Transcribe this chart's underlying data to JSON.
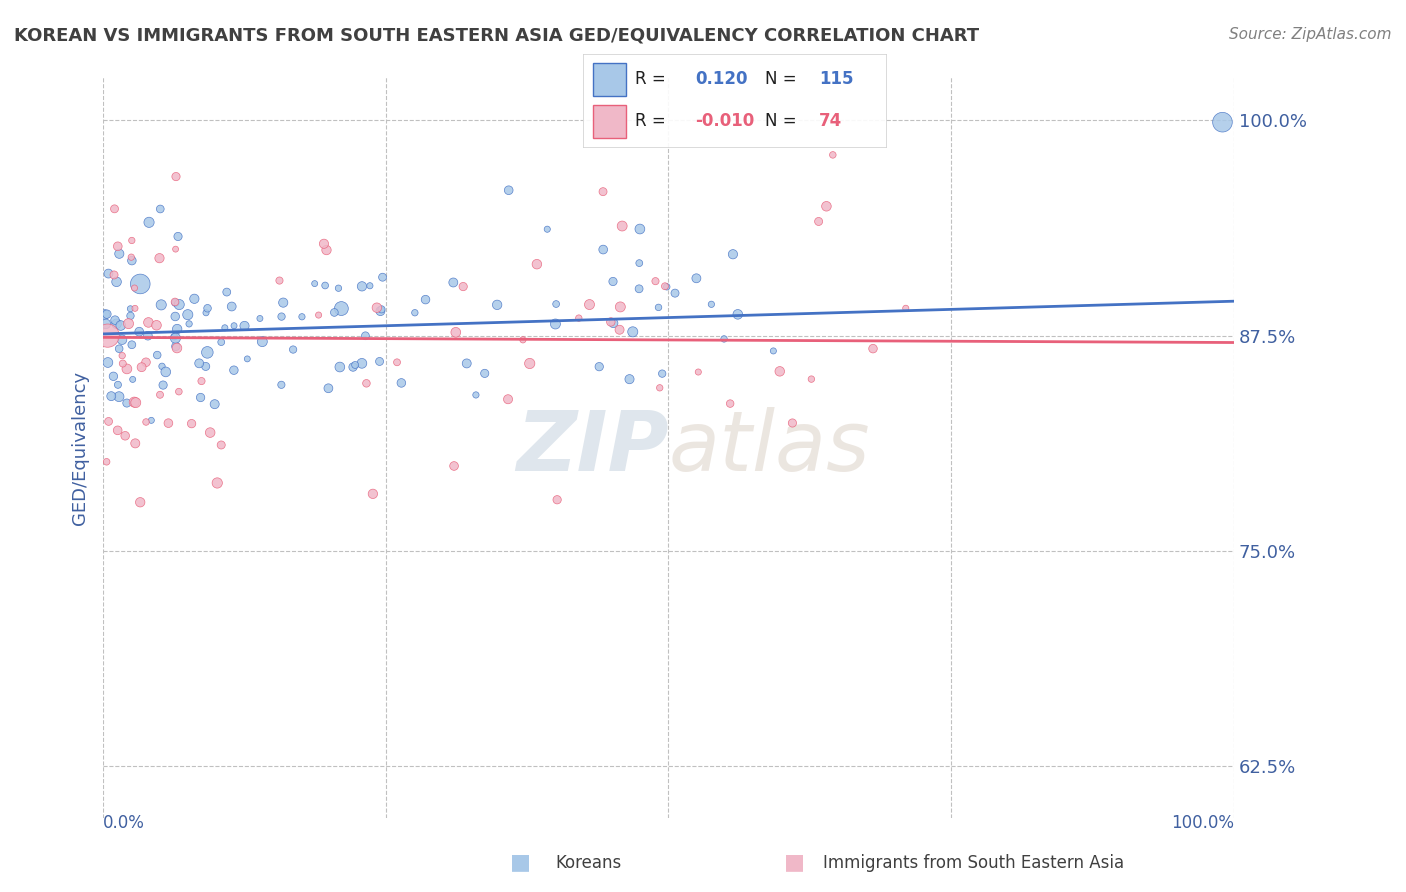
{
  "title": "KOREAN VS IMMIGRANTS FROM SOUTH EASTERN ASIA GED/EQUIVALENCY CORRELATION CHART",
  "source": "Source: ZipAtlas.com",
  "ylabel": "GED/Equivalency",
  "yticks": [
    0.625,
    0.75,
    0.875,
    1.0
  ],
  "ytick_labels": [
    "62.5%",
    "75.0%",
    "87.5%",
    "100.0%"
  ],
  "blue_line_color": "#4472c4",
  "pink_line_color": "#e8607a",
  "scatter_blue_color": "#a8c8e8",
  "scatter_pink_color": "#f0b8c8",
  "bg_color": "#ffffff",
  "grid_color": "#c0c0c0",
  "title_color": "#404040",
  "source_color": "#808080",
  "tick_label_color": "#4060a0",
  "watermark": "ZIPatlas",
  "blue_R": "0.120",
  "blue_N": "115",
  "pink_R": "-0.010",
  "pink_N": "74",
  "blue_trend_y": [
    0.876,
    0.895
  ],
  "pink_trend_y": [
    0.874,
    0.871
  ]
}
